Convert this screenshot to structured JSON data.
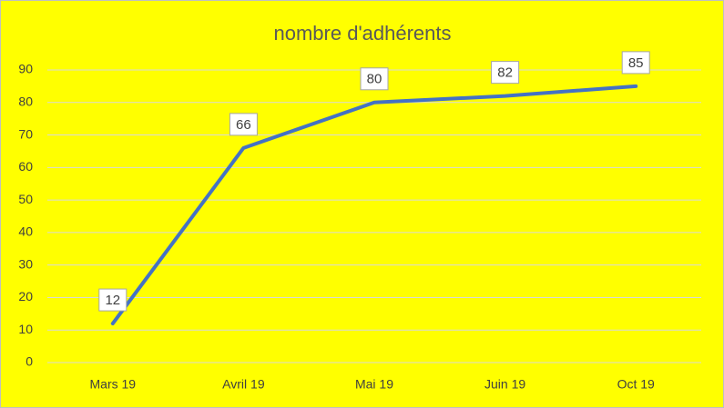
{
  "chart_data": {
    "type": "line",
    "title": "nombre d'adhérents",
    "categories": [
      "Mars 19",
      "Avril 19",
      "Mai 19",
      "Juin 19",
      "Oct 19"
    ],
    "values": [
      12,
      66,
      80,
      82,
      85
    ],
    "color": "#4472c4",
    "ylim": [
      0,
      90
    ],
    "yticks": [
      0,
      10,
      20,
      30,
      40,
      50,
      60,
      70,
      80,
      90
    ],
    "grid": true,
    "data_labels": true
  }
}
